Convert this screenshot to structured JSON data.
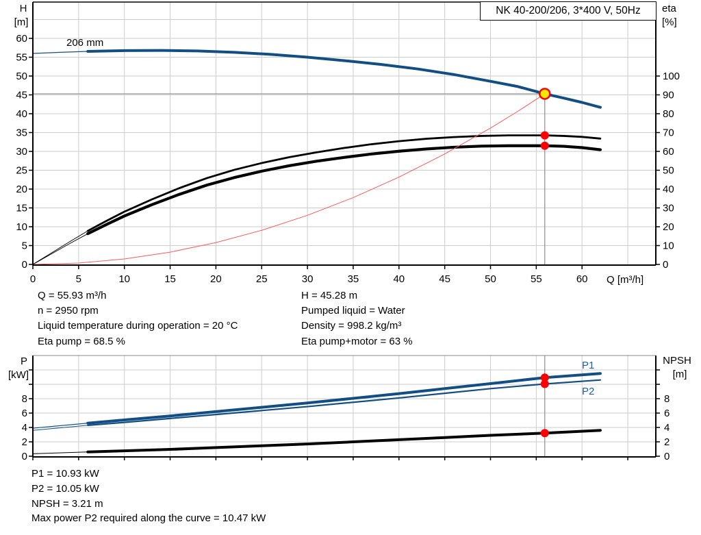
{
  "title_box": {
    "text": "NK 40-200/206, 3*400 V, 50Hz"
  },
  "colors": {
    "blue": "#134e82",
    "label_blue": "#1f5fa0",
    "black": "#000000",
    "red": "#ff0000",
    "thin_red": "#ff5a5a",
    "yellow": "#ffe800",
    "grid": "#cccccc",
    "duty": "#8c8c8c"
  },
  "chart_data": [
    {
      "type": "line",
      "id": "hq-eta-chart",
      "x": {
        "label": "Q [m³/h]",
        "ticks": [
          0,
          5,
          10,
          15,
          20,
          25,
          30,
          35,
          40,
          45,
          50,
          55,
          60
        ],
        "range": [
          0,
          68
        ]
      },
      "y_left": {
        "label": "H",
        "unit": "[m]",
        "ticks": [
          0,
          5,
          10,
          15,
          20,
          25,
          30,
          35,
          40,
          45,
          50,
          55,
          60
        ],
        "range": [
          0,
          70
        ]
      },
      "y_right": {
        "label": "eta",
        "unit": "[%]",
        "ticks": [
          0,
          10,
          20,
          30,
          40,
          50,
          60,
          70,
          80,
          90,
          100
        ],
        "range": [
          0,
          139
        ]
      },
      "series": [
        {
          "name": "head-curve",
          "label": "206 mm",
          "axis": "left",
          "color": "blue",
          "thin_width": 1.2,
          "width": 4,
          "thick_from": 6,
          "points": [
            [
              0,
              56
            ],
            [
              3,
              56.3
            ],
            [
              6,
              56.55
            ],
            [
              10,
              56.75
            ],
            [
              14,
              56.8
            ],
            [
              18,
              56.65
            ],
            [
              22,
              56.3
            ],
            [
              26,
              55.75
            ],
            [
              30,
              55.0
            ],
            [
              34,
              54.1
            ],
            [
              38,
              53.1
            ],
            [
              42,
              51.9
            ],
            [
              46,
              50.4
            ],
            [
              50,
              48.6
            ],
            [
              53,
              47.2
            ],
            [
              55.93,
              45.28
            ],
            [
              58,
              44.15
            ],
            [
              60,
              43.0
            ],
            [
              62,
              41.7
            ]
          ]
        },
        {
          "name": "eta-pump-curve",
          "axis": "right",
          "color": "black",
          "thin_width": 1,
          "width": 2.8,
          "thick_from": 6,
          "points": [
            [
              0,
              0
            ],
            [
              2,
              6
            ],
            [
              4,
              12
            ],
            [
              6,
              17.8
            ],
            [
              8,
              23
            ],
            [
              10,
              28
            ],
            [
              13,
              34.5
            ],
            [
              16,
              40.5
            ],
            [
              19,
              45.8
            ],
            [
              22,
              50.2
            ],
            [
              25,
              53.8
            ],
            [
              28,
              56.9
            ],
            [
              31,
              59.5
            ],
            [
              34,
              61.8
            ],
            [
              37,
              63.8
            ],
            [
              40,
              65.4
            ],
            [
              43,
              66.7
            ],
            [
              46,
              67.6
            ],
            [
              49,
              68.2
            ],
            [
              52,
              68.5
            ],
            [
              55.93,
              68.5
            ],
            [
              58,
              68.2
            ],
            [
              60,
              67.7
            ],
            [
              62,
              66.8
            ]
          ]
        },
        {
          "name": "eta-pump-motor-curve",
          "axis": "right",
          "color": "black",
          "thin_width": 1,
          "width": 4.2,
          "thick_from": 6,
          "points": [
            [
              0,
              0
            ],
            [
              2,
              5.5
            ],
            [
              4,
              11
            ],
            [
              6,
              16.3
            ],
            [
              8,
              21.1
            ],
            [
              10,
              25.7
            ],
            [
              13,
              31.7
            ],
            [
              16,
              37.2
            ],
            [
              19,
              42.1
            ],
            [
              22,
              46.1
            ],
            [
              25,
              49.5
            ],
            [
              28,
              52.4
            ],
            [
              31,
              54.8
            ],
            [
              34,
              56.8
            ],
            [
              37,
              58.6
            ],
            [
              40,
              60.1
            ],
            [
              43,
              61.3
            ],
            [
              46,
              62.2
            ],
            [
              49,
              62.8
            ],
            [
              52,
              63
            ],
            [
              55.93,
              63
            ],
            [
              58,
              62.7
            ],
            [
              60,
              62
            ],
            [
              62,
              60.9
            ]
          ]
        },
        {
          "name": "affinity-parabola",
          "axis": "left",
          "color": "thin_red",
          "thin_width": 1,
          "width": 1,
          "thick_from": 999,
          "points": [
            [
              0,
              0
            ],
            [
              5,
              0.36
            ],
            [
              10,
              1.45
            ],
            [
              15,
              3.26
            ],
            [
              20,
              5.79
            ],
            [
              25,
              9.05
            ],
            [
              30,
              13.03
            ],
            [
              35,
              17.74
            ],
            [
              40,
              23.17
            ],
            [
              45,
              29.32
            ],
            [
              50,
              36.2
            ],
            [
              53,
              40.66
            ],
            [
              55.93,
              45.28
            ]
          ]
        }
      ],
      "duty_point": {
        "Q": 55.93,
        "H": 45.28,
        "eta_pump": 68.5,
        "eta_pump_motor": 63
      }
    },
    {
      "type": "line",
      "id": "power-npsh-chart",
      "x": {
        "ticks": [
          0,
          5,
          10,
          15,
          20,
          25,
          30,
          35,
          40,
          45,
          50,
          55,
          60,
          65
        ],
        "range": [
          0,
          68
        ]
      },
      "y_left": {
        "label": "P",
        "unit": "[kW]",
        "ticks": [
          0,
          2,
          4,
          6,
          8,
          10,
          12
        ],
        "labeled": [
          0,
          2,
          4,
          6,
          8
        ],
        "range": [
          0,
          14
        ]
      },
      "y_right": {
        "label": "NPSH",
        "unit": "[m]",
        "ticks": [
          0,
          2,
          4,
          6,
          8,
          10,
          12
        ],
        "labeled": [
          0,
          2,
          4,
          6,
          8
        ],
        "range": [
          0,
          14
        ]
      },
      "series": [
        {
          "name": "p1-curve",
          "label": "P1",
          "axis": "left",
          "color": "blue",
          "thin_width": 1.2,
          "width": 4,
          "thick_from": 6,
          "points": [
            [
              0,
              3.9
            ],
            [
              6,
              4.6
            ],
            [
              10,
              5.05
            ],
            [
              15,
              5.6
            ],
            [
              20,
              6.2
            ],
            [
              25,
              6.8
            ],
            [
              30,
              7.4
            ],
            [
              35,
              8.05
            ],
            [
              40,
              8.7
            ],
            [
              45,
              9.4
            ],
            [
              50,
              10.1
            ],
            [
              55.93,
              10.93
            ],
            [
              62,
              11.5
            ]
          ]
        },
        {
          "name": "p2-curve",
          "label": "P2",
          "axis": "left",
          "color": "blue",
          "thin_width": 1,
          "width": 2.2,
          "thick_from": 6,
          "points": [
            [
              0,
              3.6
            ],
            [
              6,
              4.3
            ],
            [
              10,
              4.7
            ],
            [
              15,
              5.25
            ],
            [
              20,
              5.8
            ],
            [
              25,
              6.35
            ],
            [
              30,
              6.9
            ],
            [
              35,
              7.5
            ],
            [
              40,
              8.1
            ],
            [
              45,
              8.75
            ],
            [
              50,
              9.4
            ],
            [
              55.93,
              10.05
            ],
            [
              62,
              10.6
            ]
          ]
        },
        {
          "name": "npsh-curve",
          "axis": "right",
          "color": "black",
          "thin_width": 1,
          "width": 4,
          "thick_from": 6,
          "points": [
            [
              0,
              0.35
            ],
            [
              6,
              0.6
            ],
            [
              10,
              0.75
            ],
            [
              15,
              0.95
            ],
            [
              20,
              1.2
            ],
            [
              25,
              1.45
            ],
            [
              30,
              1.7
            ],
            [
              35,
              2.0
            ],
            [
              40,
              2.3
            ],
            [
              45,
              2.6
            ],
            [
              50,
              2.9
            ],
            [
              55.93,
              3.21
            ],
            [
              62,
              3.6
            ]
          ]
        }
      ],
      "duty_point": {
        "Q": 55.93,
        "P1": 10.93,
        "P2": 10.05,
        "NPSH": 3.21
      }
    }
  ],
  "info_top": {
    "left": [
      "Q = 55.93 m³/h",
      "n = 2950 rpm",
      "Liquid temperature during operation = 20 °C",
      "Eta pump = 68.5 %"
    ],
    "right": [
      "H = 45.28 m",
      "Pumped liquid = Water",
      "Density = 998.2 kg/m³",
      "Eta pump+motor = 63 %"
    ]
  },
  "info_bottom": [
    "P1 = 10.93 kW",
    "P2 = 10.05 kW",
    "NPSH = 3.21 m",
    "Max power P2 required along the curve = 10.47 kW"
  ]
}
